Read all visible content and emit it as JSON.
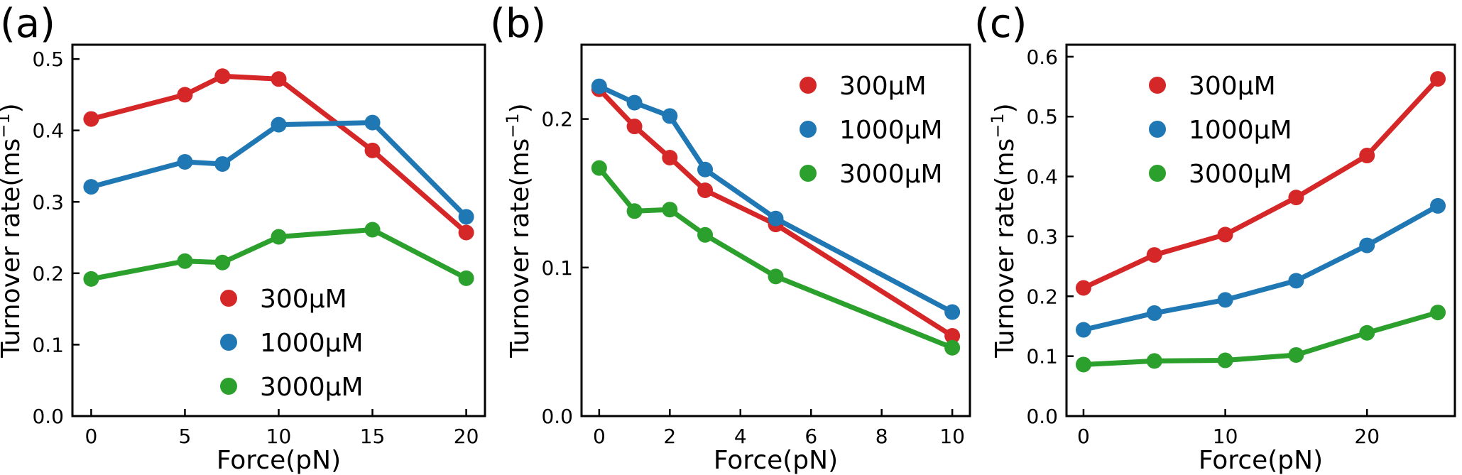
{
  "colors": {
    "series_300": "#d62728",
    "series_1000": "#1f77b4",
    "series_3000": "#2ca02c"
  },
  "chart_data": [
    {
      "type": "line",
      "panel_label": "(a)",
      "xlabel": "Force(pN)",
      "ylabel_prefix": "Turnover rate(ms",
      "ylabel_sup": "−1",
      "ylabel_suffix": ")",
      "xlim": [
        -1,
        21
      ],
      "ylim": [
        0,
        0.52
      ],
      "xticks": [
        0,
        5,
        10,
        15,
        20
      ],
      "xtick_labels": [
        "0",
        "5",
        "10",
        "15",
        "20"
      ],
      "yticks": [
        0,
        0.1,
        0.2,
        0.3,
        0.4,
        0.5
      ],
      "ytick_labels": [
        "0.0",
        "0.1",
        "0.2",
        "0.3",
        "0.4",
        "0.5"
      ],
      "legend_position": "lower-center",
      "series": [
        {
          "name": "300μM",
          "color": "#d62728",
          "x": [
            0,
            5,
            7,
            10,
            15,
            20
          ],
          "y": [
            0.416,
            0.45,
            0.476,
            0.472,
            0.372,
            0.257
          ]
        },
        {
          "name": "1000μM",
          "color": "#1f77b4",
          "x": [
            0,
            5,
            7,
            10,
            15,
            20
          ],
          "y": [
            0.321,
            0.356,
            0.353,
            0.408,
            0.411,
            0.279
          ]
        },
        {
          "name": "3000μM",
          "color": "#2ca02c",
          "x": [
            0,
            5,
            7,
            10,
            15,
            20
          ],
          "y": [
            0.192,
            0.217,
            0.215,
            0.251,
            0.261,
            0.193
          ]
        }
      ]
    },
    {
      "type": "line",
      "panel_label": "(b)",
      "xlabel": "Force(pN)",
      "ylabel_prefix": "Turnover rate(ms",
      "ylabel_sup": "−1",
      "ylabel_suffix": ")",
      "xlim": [
        -0.5,
        10.5
      ],
      "ylim": [
        0,
        0.25
      ],
      "xticks": [
        0,
        2,
        4,
        6,
        8,
        10
      ],
      "xtick_labels": [
        "0",
        "2",
        "4",
        "6",
        "8",
        "10"
      ],
      "yticks": [
        0,
        0.1,
        0.2
      ],
      "ytick_labels": [
        "0.0",
        "0.1",
        "0.2"
      ],
      "legend_position": "top-right",
      "series": [
        {
          "name": "300μM",
          "color": "#d62728",
          "x": [
            0,
            1,
            2,
            3,
            5,
            10
          ],
          "y": [
            0.22,
            0.195,
            0.174,
            0.152,
            0.129,
            0.054
          ]
        },
        {
          "name": "1000μM",
          "color": "#1f77b4",
          "x": [
            0,
            1,
            2,
            3,
            5,
            10
          ],
          "y": [
            0.222,
            0.211,
            0.202,
            0.166,
            0.133,
            0.07
          ]
        },
        {
          "name": "3000μM",
          "color": "#2ca02c",
          "x": [
            0,
            1,
            2,
            3,
            5,
            10
          ],
          "y": [
            0.167,
            0.138,
            0.139,
            0.122,
            0.094,
            0.046
          ]
        }
      ]
    },
    {
      "type": "line",
      "panel_label": "(c)",
      "xlabel": "Force(pN)",
      "ylabel_prefix": "Turnover rate(ms",
      "ylabel_sup": "−1",
      "ylabel_suffix": ")",
      "xlim": [
        -1.2,
        26.2
      ],
      "ylim": [
        0,
        0.62
      ],
      "xticks": [
        0,
        10,
        20
      ],
      "xtick_labels": [
        "0",
        "10",
        "20"
      ],
      "yticks": [
        0,
        0.1,
        0.2,
        0.3,
        0.4,
        0.5,
        0.6
      ],
      "ytick_labels": [
        "0.0",
        "0.1",
        "0.2",
        "0.3",
        "0.4",
        "0.5",
        "0.6"
      ],
      "legend_position": "top-left",
      "series": [
        {
          "name": "300μM",
          "color": "#d62728",
          "x": [
            0,
            5,
            10,
            15,
            20,
            25
          ],
          "y": [
            0.214,
            0.269,
            0.303,
            0.365,
            0.435,
            0.563
          ]
        },
        {
          "name": "1000μM",
          "color": "#1f77b4",
          "x": [
            0,
            5,
            10,
            15,
            20,
            25
          ],
          "y": [
            0.144,
            0.172,
            0.194,
            0.226,
            0.285,
            0.351
          ]
        },
        {
          "name": "3000μM",
          "color": "#2ca02c",
          "x": [
            0,
            5,
            10,
            15,
            20,
            25
          ],
          "y": [
            0.086,
            0.092,
            0.093,
            0.102,
            0.139,
            0.173
          ]
        }
      ]
    }
  ]
}
